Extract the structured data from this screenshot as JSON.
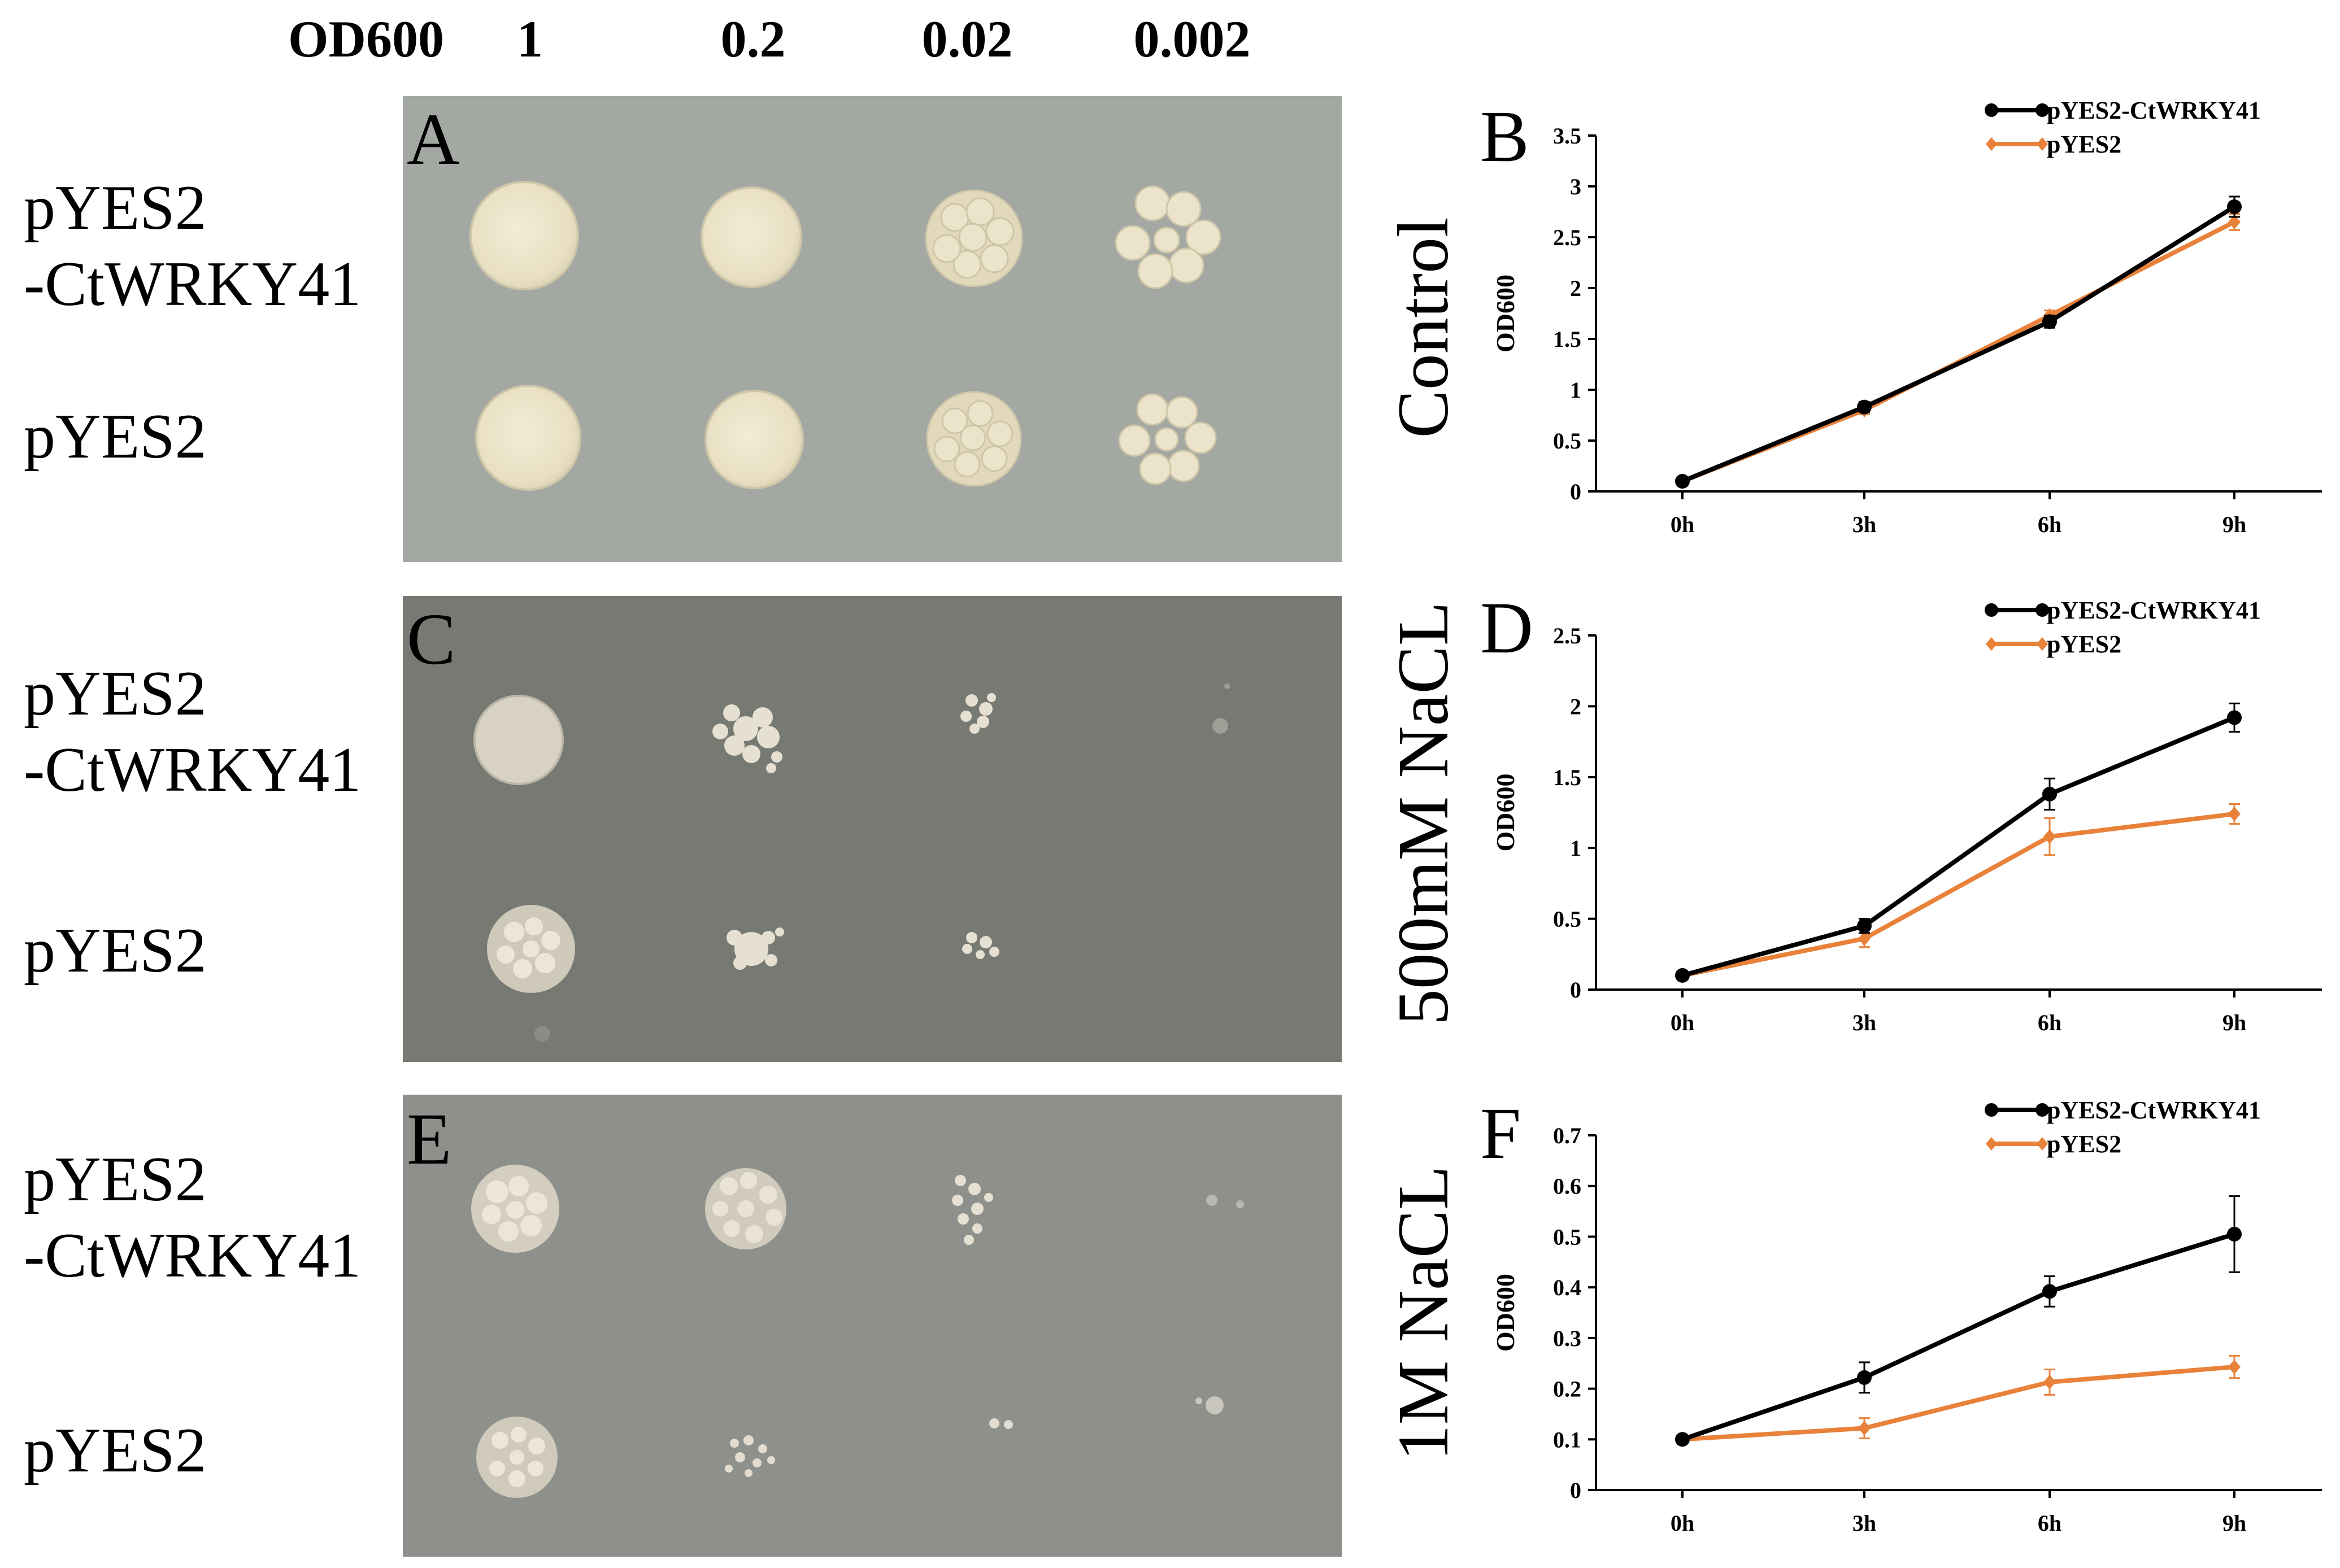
{
  "header": {
    "od_label": "OD600",
    "dilutions": [
      "1",
      "0.2",
      "0.02",
      "0.002"
    ]
  },
  "panels": [
    {
      "letter": "A",
      "rows": [
        "pYES2",
        "-CtWRKY41",
        "pYES2"
      ],
      "condition": "Control"
    },
    {
      "letter": "C",
      "rows": [
        "pYES2",
        "-CtWRKY41",
        "pYES2"
      ],
      "condition": "500mM NaCL"
    },
    {
      "letter": "E",
      "rows": [
        "pYES2",
        "-CtWRKY41",
        "pYES2"
      ],
      "condition": "1M NaCL"
    }
  ],
  "colors": {
    "plate_control": "#a3a8a3",
    "plate_salt_500": "#767a72",
    "plate_salt_1m": "#8e918b",
    "colony": "#ede6cc",
    "series_black": "#000000",
    "series_orange": "#e8823a"
  },
  "chart_data": [
    {
      "type": "line",
      "panel": "B",
      "condition": "Control",
      "ylabel": "OD600",
      "x": [
        "0h",
        "3h",
        "6h",
        "9h"
      ],
      "yticks": [
        "0",
        "0.5",
        "1",
        "1.5",
        "2",
        "2.5",
        "3",
        "3.5"
      ],
      "ylim": [
        0,
        3.5
      ],
      "legend_position": "top-right",
      "series": [
        {
          "name": "pYES2-CtWRKY41",
          "values": [
            0.1,
            0.83,
            1.67,
            2.8
          ],
          "errors": [
            0.02,
            0.05,
            0.06,
            0.1
          ]
        },
        {
          "name": "pYES2",
          "values": [
            0.1,
            0.8,
            1.73,
            2.65
          ],
          "errors": [
            0.02,
            0.04,
            0.05,
            0.08
          ]
        }
      ]
    },
    {
      "type": "line",
      "panel": "D",
      "condition": "500mM NaCL",
      "ylabel": "OD600",
      "x": [
        "0h",
        "3h",
        "6h",
        "9h"
      ],
      "yticks": [
        "0",
        "0.5",
        "1",
        "1.5",
        "2",
        "2.5"
      ],
      "ylim": [
        0,
        2.5
      ],
      "legend_position": "top-right",
      "series": [
        {
          "name": "pYES2-CtWRKY41",
          "values": [
            0.1,
            0.45,
            1.38,
            1.92
          ],
          "errors": [
            0.02,
            0.05,
            0.11,
            0.1
          ]
        },
        {
          "name": "pYES2",
          "values": [
            0.1,
            0.36,
            1.08,
            1.24
          ],
          "errors": [
            0.02,
            0.06,
            0.13,
            0.07
          ]
        }
      ]
    },
    {
      "type": "line",
      "panel": "F",
      "condition": "1M NaCL",
      "ylabel": "OD600",
      "x": [
        "0h",
        "3h",
        "6h",
        "9h"
      ],
      "yticks": [
        "0",
        "0.1",
        "0.2",
        "0.3",
        "0.4",
        "0.5",
        "0.6",
        "0.7"
      ],
      "ylim": [
        0,
        0.7
      ],
      "legend_position": "top-right",
      "series": [
        {
          "name": "pYES2-CtWRKY41",
          "values": [
            0.1,
            0.222,
            0.392,
            0.505
          ],
          "errors": [
            0.005,
            0.03,
            0.03,
            0.075
          ]
        },
        {
          "name": "pYES2",
          "values": [
            0.1,
            0.122,
            0.213,
            0.243
          ],
          "errors": [
            0.005,
            0.02,
            0.025,
            0.022
          ]
        }
      ]
    }
  ]
}
